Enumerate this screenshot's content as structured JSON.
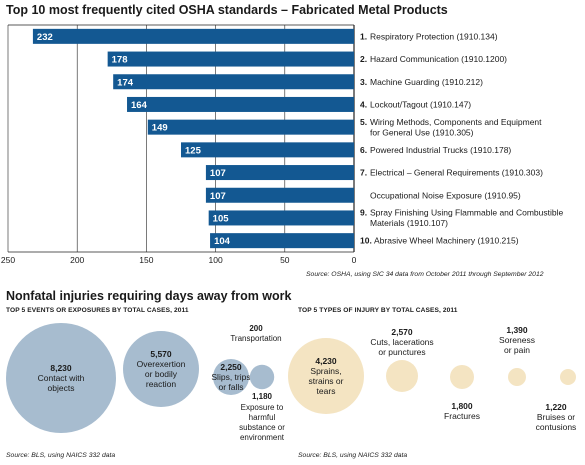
{
  "colors": {
    "bar": "#135892",
    "bubble_events": "#a7bccf",
    "bubble_injury": "#f4e4c2",
    "text": "#1a1a1a",
    "axis": "#222222"
  },
  "top10": {
    "title": "Top 10 most frequently cited OSHA standards – Fabricated Metal Products",
    "source": "Source: OSHA, using SIC 34 data from October 2011 through September 2012"
  },
  "injuries": {
    "title": "Nonfatal injuries requiring days away from work",
    "events_subtitle": "TOP 5 EVENTS OR EXPOSURES BY TOTAL CASES, 2011",
    "events_source": "Source: BLS, using NAICS 332 data",
    "types_subtitle": "TOP 5 TYPES OF INJURY BY TOTAL CASES, 2011",
    "types_source": "Source: BLS, using NAICS 332 data"
  },
  "chart_data": [
    {
      "type": "bar",
      "orientation": "horizontal",
      "title": "Top 10 most frequently cited OSHA standards – Fabricated Metal Products",
      "xlim": [
        0,
        250
      ],
      "x_reversed": true,
      "xticks": [
        "250",
        "200",
        "150",
        "100",
        "50",
        "0"
      ],
      "grid": true,
      "categories": [
        {
          "num": "1.",
          "lines": [
            "Respiratory Protection (1910.134)"
          ]
        },
        {
          "num": "2.",
          "lines": [
            "Hazard Communication (1910.1200)"
          ]
        },
        {
          "num": "3.",
          "lines": [
            "Machine Guarding (1910.212)"
          ]
        },
        {
          "num": "4.",
          "lines": [
            "Lockout/Tagout (1910.147)"
          ]
        },
        {
          "num": "5.",
          "lines": [
            "Wiring Methods, Components and Equipment",
            "for General Use (1910.305)"
          ]
        },
        {
          "num": "6.",
          "lines": [
            "Powered Industrial Trucks (1910.178)"
          ]
        },
        {
          "num": "7.",
          "lines": [
            "Electrical – General Requirements (1910.303)"
          ]
        },
        {
          "num": "",
          "lines": [
            "Occupational Noise Exposure (1910.95)"
          ]
        },
        {
          "num": "9.",
          "lines": [
            "Spray Finishing Using Flammable and Combustible",
            "Materials (1910.107)"
          ]
        },
        {
          "num": "10.",
          "lines": [
            "Abrasive Wheel Machinery (1910.215)"
          ]
        }
      ],
      "values": [
        232,
        178,
        174,
        164,
        149,
        125,
        107,
        107,
        105,
        104
      ],
      "source": "Source: OSHA, using SIC 34 data from October 2011 through September 2012"
    },
    {
      "type": "bubble",
      "title": "TOP 5 EVENTS OR EXPOSURES BY TOTAL CASES, 2011",
      "items": [
        {
          "value": 8230,
          "value_label": "8,230",
          "label": [
            "Contact with",
            "objects"
          ]
        },
        {
          "value": 5570,
          "value_label": "5,570",
          "label": [
            "Overexertion",
            "or bodily",
            "reaction"
          ]
        },
        {
          "value": 2250,
          "value_label": "2,250",
          "label": [
            "Slips, trips",
            "or falls"
          ]
        },
        {
          "value": 200,
          "value_label": "200",
          "label": [
            "Transportation"
          ]
        },
        {
          "value": 1180,
          "value_label": "1,180",
          "label": [
            "Exposure to",
            "harmful",
            "substance or",
            "environment"
          ]
        }
      ],
      "source": "Source: BLS, using NAICS 332 data"
    },
    {
      "type": "bubble",
      "title": "TOP 5 TYPES OF INJURY BY TOTAL CASES, 2011",
      "items": [
        {
          "value": 4230,
          "value_label": "4,230",
          "label": [
            "Sprains,",
            "strains or",
            "tears"
          ]
        },
        {
          "value": 2570,
          "value_label": "2,570",
          "label": [
            "Cuts, lacerations",
            "or punctures"
          ]
        },
        {
          "value": 1800,
          "value_label": "1,800",
          "label": [
            "Fractures"
          ]
        },
        {
          "value": 1390,
          "value_label": "1,390",
          "label": [
            "Soreness",
            "or pain"
          ]
        },
        {
          "value": 1220,
          "value_label": "1,220",
          "label": [
            "Bruises or",
            "contusions"
          ]
        }
      ],
      "source": "Source: BLS, using NAICS 332 data"
    }
  ]
}
